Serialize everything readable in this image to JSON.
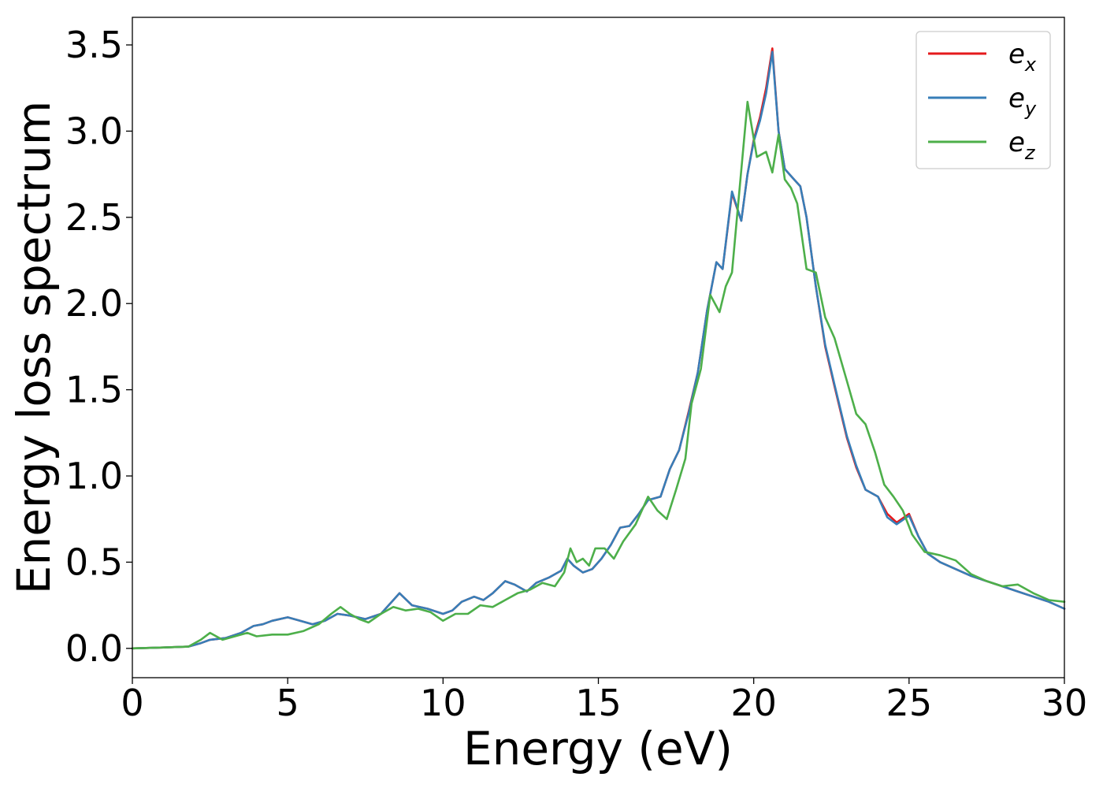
{
  "chart_data": {
    "type": "line",
    "xlabel": "Energy (eV)",
    "ylabel": "Energy loss spectrum",
    "xlim": [
      0,
      30
    ],
    "ylim": [
      -0.17,
      3.66
    ],
    "xticks": [
      "0",
      "5",
      "10",
      "15",
      "20",
      "25",
      "30"
    ],
    "yticks": [
      "0.0",
      "0.5",
      "1.0",
      "1.5",
      "2.0",
      "2.5",
      "3.0",
      "3.5"
    ],
    "grid": false,
    "legend_position": "top-right",
    "series": [
      {
        "name": "e_x",
        "label_base": "e",
        "label_sub": "x",
        "color": "#e41a1c",
        "x": [
          0,
          1,
          1.8,
          2.2,
          2.5,
          3.0,
          3.5,
          3.9,
          4.2,
          4.5,
          5.0,
          5.4,
          5.8,
          6.2,
          6.6,
          7.0,
          7.5,
          8.0,
          8.3,
          8.6,
          9.0,
          9.5,
          10.0,
          10.3,
          10.6,
          11.0,
          11.3,
          11.6,
          12.0,
          12.3,
          12.7,
          13.0,
          13.4,
          13.8,
          14.0,
          14.2,
          14.5,
          14.8,
          15.1,
          15.4,
          15.7,
          16.0,
          16.3,
          16.6,
          17.0,
          17.3,
          17.6,
          17.9,
          18.2,
          18.5,
          18.8,
          19.0,
          19.3,
          19.6,
          19.8,
          20.0,
          20.2,
          20.4,
          20.6,
          20.8,
          21.0,
          21.3,
          21.5,
          21.7,
          22.0,
          22.3,
          22.6,
          23.0,
          23.3,
          23.6,
          24.0,
          24.3,
          24.6,
          25.0,
          25.3,
          25.6,
          26.0,
          26.5,
          27.0,
          27.5,
          28.0,
          28.5,
          29.0,
          29.5,
          30.0
        ],
        "y": [
          0.0,
          0.005,
          0.01,
          0.03,
          0.05,
          0.06,
          0.09,
          0.13,
          0.14,
          0.16,
          0.18,
          0.16,
          0.14,
          0.16,
          0.2,
          0.19,
          0.17,
          0.2,
          0.26,
          0.32,
          0.25,
          0.23,
          0.2,
          0.22,
          0.27,
          0.3,
          0.28,
          0.32,
          0.39,
          0.37,
          0.33,
          0.38,
          0.41,
          0.45,
          0.52,
          0.48,
          0.44,
          0.46,
          0.52,
          0.6,
          0.7,
          0.71,
          0.78,
          0.86,
          0.88,
          1.04,
          1.15,
          1.37,
          1.6,
          1.96,
          2.24,
          2.2,
          2.64,
          2.48,
          2.75,
          2.95,
          3.08,
          3.25,
          3.48,
          3.0,
          2.78,
          2.72,
          2.68,
          2.5,
          2.1,
          1.75,
          1.52,
          1.22,
          1.05,
          0.92,
          0.88,
          0.78,
          0.73,
          0.78,
          0.65,
          0.55,
          0.5,
          0.46,
          0.42,
          0.39,
          0.36,
          0.33,
          0.3,
          0.27,
          0.23
        ]
      },
      {
        "name": "e_y",
        "label_base": "e",
        "label_sub": "y",
        "color": "#377eb8",
        "x": [
          0,
          1,
          1.8,
          2.2,
          2.5,
          3.0,
          3.5,
          3.9,
          4.2,
          4.5,
          5.0,
          5.4,
          5.8,
          6.2,
          6.6,
          7.0,
          7.5,
          8.0,
          8.3,
          8.6,
          9.0,
          9.5,
          10.0,
          10.3,
          10.6,
          11.0,
          11.3,
          11.6,
          12.0,
          12.3,
          12.7,
          13.0,
          13.4,
          13.8,
          14.0,
          14.2,
          14.5,
          14.8,
          15.1,
          15.4,
          15.7,
          16.0,
          16.3,
          16.6,
          17.0,
          17.3,
          17.6,
          17.9,
          18.2,
          18.5,
          18.8,
          19.0,
          19.3,
          19.6,
          19.8,
          20.0,
          20.2,
          20.4,
          20.6,
          20.8,
          21.0,
          21.3,
          21.5,
          21.7,
          22.0,
          22.3,
          22.6,
          23.0,
          23.3,
          23.6,
          24.0,
          24.3,
          24.6,
          25.0,
          25.3,
          25.6,
          26.0,
          26.5,
          27.0,
          27.5,
          28.0,
          28.5,
          29.0,
          29.5,
          30.0
        ],
        "y": [
          0.0,
          0.005,
          0.01,
          0.03,
          0.05,
          0.06,
          0.09,
          0.13,
          0.14,
          0.16,
          0.18,
          0.16,
          0.14,
          0.16,
          0.2,
          0.19,
          0.17,
          0.2,
          0.26,
          0.32,
          0.25,
          0.23,
          0.2,
          0.22,
          0.27,
          0.3,
          0.28,
          0.32,
          0.39,
          0.37,
          0.33,
          0.38,
          0.41,
          0.45,
          0.52,
          0.48,
          0.44,
          0.46,
          0.52,
          0.6,
          0.7,
          0.71,
          0.78,
          0.86,
          0.88,
          1.04,
          1.15,
          1.36,
          1.6,
          1.96,
          2.24,
          2.2,
          2.65,
          2.48,
          2.75,
          2.94,
          3.06,
          3.22,
          3.46,
          3.0,
          2.78,
          2.72,
          2.68,
          2.5,
          2.1,
          1.76,
          1.53,
          1.23,
          1.06,
          0.92,
          0.88,
          0.76,
          0.72,
          0.77,
          0.65,
          0.55,
          0.5,
          0.46,
          0.42,
          0.39,
          0.36,
          0.33,
          0.3,
          0.27,
          0.23
        ]
      },
      {
        "name": "e_z",
        "label_base": "e",
        "label_sub": "z",
        "color": "#4daf4a",
        "x": [
          0,
          1,
          1.8,
          2.2,
          2.5,
          2.9,
          3.3,
          3.7,
          4.0,
          4.5,
          5.0,
          5.5,
          6.0,
          6.4,
          6.7,
          7.0,
          7.3,
          7.6,
          8.0,
          8.4,
          8.8,
          9.2,
          9.6,
          10.0,
          10.4,
          10.8,
          11.2,
          11.6,
          12.0,
          12.4,
          12.8,
          13.2,
          13.6,
          13.9,
          14.1,
          14.3,
          14.5,
          14.7,
          14.9,
          15.2,
          15.5,
          15.8,
          16.2,
          16.6,
          16.9,
          17.2,
          17.5,
          17.8,
          18.0,
          18.3,
          18.6,
          18.9,
          19.1,
          19.3,
          19.5,
          19.8,
          20.1,
          20.4,
          20.6,
          20.8,
          21.0,
          21.2,
          21.4,
          21.7,
          22.0,
          22.3,
          22.6,
          23.0,
          23.3,
          23.6,
          23.9,
          24.2,
          24.5,
          24.8,
          25.1,
          25.5,
          26.0,
          26.5,
          27.0,
          27.5,
          28.0,
          28.5,
          29.0,
          29.5,
          30.0
        ],
        "y": [
          0.0,
          0.005,
          0.01,
          0.05,
          0.09,
          0.05,
          0.07,
          0.09,
          0.07,
          0.08,
          0.08,
          0.1,
          0.14,
          0.2,
          0.24,
          0.2,
          0.17,
          0.15,
          0.2,
          0.24,
          0.22,
          0.23,
          0.21,
          0.16,
          0.2,
          0.2,
          0.25,
          0.24,
          0.28,
          0.32,
          0.34,
          0.38,
          0.36,
          0.44,
          0.58,
          0.5,
          0.52,
          0.48,
          0.58,
          0.58,
          0.52,
          0.62,
          0.72,
          0.88,
          0.8,
          0.75,
          0.92,
          1.1,
          1.42,
          1.62,
          2.05,
          1.95,
          2.1,
          2.18,
          2.58,
          3.17,
          2.85,
          2.88,
          2.76,
          2.98,
          2.72,
          2.67,
          2.58,
          2.2,
          2.18,
          1.92,
          1.8,
          1.55,
          1.36,
          1.3,
          1.14,
          0.95,
          0.88,
          0.8,
          0.66,
          0.56,
          0.54,
          0.51,
          0.43,
          0.39,
          0.36,
          0.37,
          0.32,
          0.28,
          0.27
        ]
      }
    ]
  }
}
